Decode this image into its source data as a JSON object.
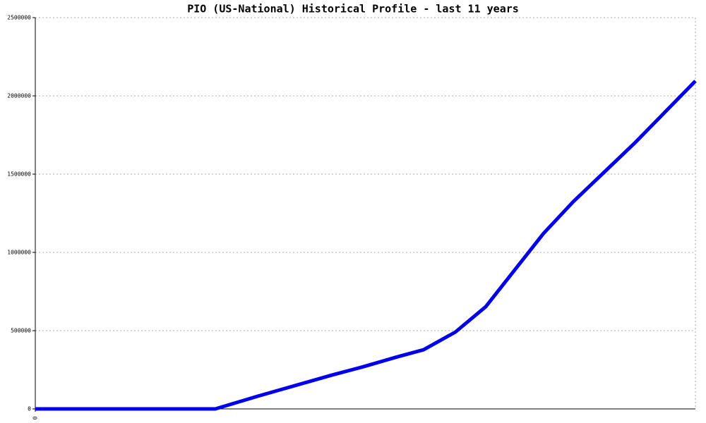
{
  "chart_data": {
    "type": "line",
    "title": "PIO (US-National) Historical Profile - last 11 years",
    "x": [
      0,
      255,
      315,
      420,
      465,
      510,
      550,
      595,
      638,
      720,
      762,
      850,
      935
    ],
    "series": [
      {
        "name": "PIO",
        "color": "#0000ee",
        "values": [
          0,
          0,
          81000,
          216000,
          270000,
          329000,
          378000,
          491000,
          653000,
          1122000,
          1324000,
          1703000,
          2095000
        ]
      }
    ],
    "xlim": [
      0,
      935
    ],
    "xticks": [
      0
    ],
    "ylim": [
      0,
      2500000
    ],
    "yticks": [
      0,
      500000,
      1000000,
      1500000,
      2000000,
      2500000
    ],
    "grid": true
  }
}
